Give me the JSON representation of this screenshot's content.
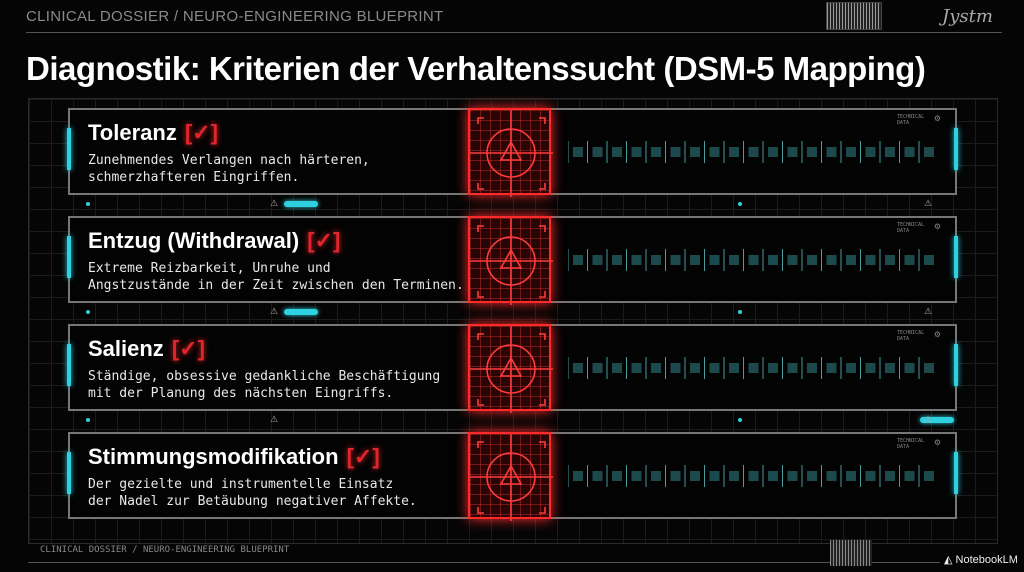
{
  "header": {
    "breadcrumb": "CLINICAL DOSSIER / NEURO-ENGINEERING BLUEPRINT",
    "signature": "Jystm"
  },
  "title": "Diagnostik: Kriterien der Verhaltenssucht (DSM-5 Mapping)",
  "check_mark": "[✓]",
  "tech_label": "TECHNICAL DATA",
  "criteria": [
    {
      "title": "Toleranz",
      "desc": "Zunehmendes Verlangen nach härteren,\nschmerzhafteren Eingriffen."
    },
    {
      "title": "Entzug (Withdrawal)",
      "desc": "Extreme Reizbarkeit, Unruhe und\nAngstzustände in der Zeit zwischen den Terminen."
    },
    {
      "title": "Salienz",
      "desc": "Ständige, obsessive gedankliche Beschäftigung\nmit der Planung des nächsten Eingriffs."
    },
    {
      "title": "Stimmungsmodifikation",
      "desc": "Der gezielte und instrumentelle Einsatz\nder Nadel zur Betäubung negativer Affekte."
    }
  ],
  "icons": {
    "target": "warning-triangle-target-icon",
    "warning": "warning-icon",
    "gear": "gear-icon"
  },
  "colors": {
    "accent_red": "#e0262b",
    "accent_cyan": "#2fd0e0",
    "background": "#050505"
  },
  "footer": {
    "breadcrumb": "CLINICAL DOSSIER / NEURO-ENGINEERING BLUEPRINT",
    "brand": "NotebookLM"
  }
}
